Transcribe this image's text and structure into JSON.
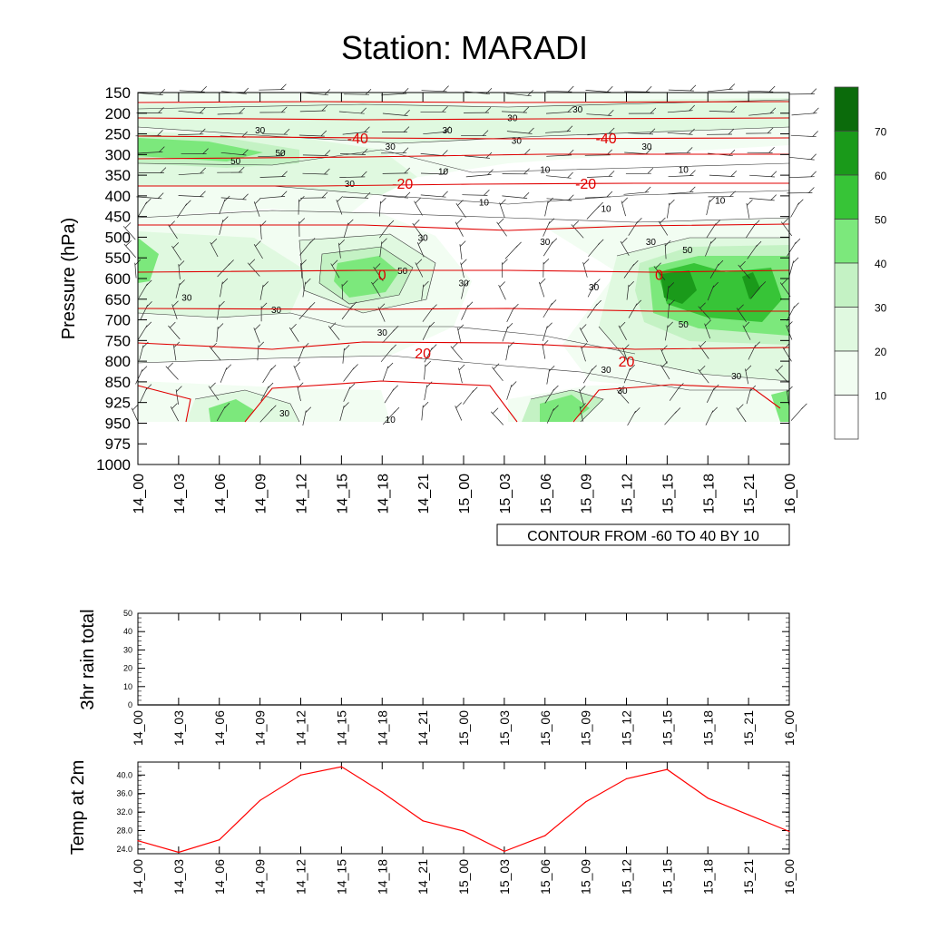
{
  "page_title": "Station: MARADI",
  "chart_data": [
    {
      "id": "upper_air",
      "type": "heatmap",
      "title": "Station: MARADI",
      "ylabel": "Pressure (hPa)",
      "xlabel": "",
      "x_ticks": [
        "14_00",
        "14_03",
        "14_06",
        "14_09",
        "14_12",
        "14_15",
        "14_18",
        "14_21",
        "15_00",
        "15_03",
        "15_06",
        "15_09",
        "15_12",
        "15_15",
        "15_18",
        "15_21",
        "16_00"
      ],
      "y_ticks": [
        "150",
        "200",
        "250",
        "300",
        "350",
        "400",
        "450",
        "500",
        "550",
        "600",
        "650",
        "700",
        "750",
        "800",
        "850",
        "925",
        "950",
        "975",
        "1000"
      ],
      "contour_label": "CONTOUR FROM -60 TO 40 BY 10",
      "colorbar": {
        "levels": [
          10,
          20,
          30,
          40,
          50,
          60,
          70
        ],
        "colors": [
          "#ffffff",
          "#f2fdf2",
          "#e0f9e0",
          "#c4f2c4",
          "#7ce87c",
          "#37c437",
          "#1a9a1a",
          "#0b6b0b"
        ]
      },
      "temperature_labels": [
        {
          "text": "-40",
          "x_index": 5.4,
          "level_index": 2.2
        },
        {
          "text": "-40",
          "x_index": 11.5,
          "level_index": 2.2
        },
        {
          "text": "-20",
          "x_index": 6.5,
          "level_index": 4.4
        },
        {
          "text": "-20",
          "x_index": 11.0,
          "level_index": 4.4
        },
        {
          "text": "0",
          "x_index": 6.0,
          "level_index": 8.8
        },
        {
          "text": "0",
          "x_index": 12.8,
          "level_index": 8.8
        },
        {
          "text": "20",
          "x_index": 7.0,
          "level_index": 12.6
        },
        {
          "text": "20",
          "x_index": 12.0,
          "level_index": 13.0
        }
      ],
      "humidity_labels": [
        {
          "text": "30",
          "x_index": 3.0,
          "level_index": 1.8
        },
        {
          "text": "30",
          "x_index": 7.6,
          "level_index": 1.8
        },
        {
          "text": "30",
          "x_index": 9.2,
          "level_index": 1.2
        },
        {
          "text": "30",
          "x_index": 10.8,
          "level_index": 0.8
        },
        {
          "text": "30",
          "x_index": 9.3,
          "level_index": 2.3
        },
        {
          "text": "30",
          "x_index": 6.2,
          "level_index": 2.6
        },
        {
          "text": "30",
          "x_index": 12.5,
          "level_index": 2.6
        },
        {
          "text": "50",
          "x_index": 3.5,
          "level_index": 2.9
        },
        {
          "text": "50",
          "x_index": 2.4,
          "level_index": 3.3
        },
        {
          "text": "10",
          "x_index": 7.5,
          "level_index": 3.8
        },
        {
          "text": "10",
          "x_index": 10.0,
          "level_index": 3.7
        },
        {
          "text": "10",
          "x_index": 13.4,
          "level_index": 3.7
        },
        {
          "text": "30",
          "x_index": 5.2,
          "level_index": 4.4
        },
        {
          "text": "10",
          "x_index": 8.5,
          "level_index": 5.3
        },
        {
          "text": "10",
          "x_index": 11.5,
          "level_index": 5.6
        },
        {
          "text": "10",
          "x_index": 14.3,
          "level_index": 5.2
        },
        {
          "text": "30",
          "x_index": 7.0,
          "level_index": 7.0
        },
        {
          "text": "30",
          "x_index": 10.0,
          "level_index": 7.2
        },
        {
          "text": "30",
          "x_index": 12.6,
          "level_index": 7.2
        },
        {
          "text": "50",
          "x_index": 13.5,
          "level_index": 7.6
        },
        {
          "text": "50",
          "x_index": 6.5,
          "level_index": 8.6
        },
        {
          "text": "30",
          "x_index": 8.0,
          "level_index": 9.2
        },
        {
          "text": "30",
          "x_index": 11.2,
          "level_index": 9.4
        },
        {
          "text": "30",
          "x_index": 1.2,
          "level_index": 9.9
        },
        {
          "text": "30",
          "x_index": 3.4,
          "level_index": 10.5
        },
        {
          "text": "50",
          "x_index": 13.4,
          "level_index": 11.2
        },
        {
          "text": "30",
          "x_index": 6.0,
          "level_index": 11.6
        },
        {
          "text": "30",
          "x_index": 11.5,
          "level_index": 13.4
        },
        {
          "text": "30",
          "x_index": 14.7,
          "level_index": 13.7
        },
        {
          "text": "30",
          "x_index": 11.9,
          "level_index": 14.4
        },
        {
          "text": "30",
          "x_index": 3.6,
          "level_index": 15.5
        },
        {
          "text": "10",
          "x_index": 6.2,
          "level_index": 15.8
        }
      ]
    },
    {
      "id": "rain",
      "type": "line",
      "ylabel": "3hr rain total",
      "x": [
        "14_00",
        "14_03",
        "14_06",
        "14_09",
        "14_12",
        "14_15",
        "14_18",
        "14_21",
        "15_00",
        "15_03",
        "15_06",
        "15_09",
        "15_12",
        "15_15",
        "15_18",
        "15_21",
        "16_00"
      ],
      "y_ticks": [
        "0",
        "10",
        "20",
        "30",
        "40",
        "50"
      ],
      "ylim": [
        0,
        50
      ],
      "series": [
        {
          "name": "3hr rain total",
          "values": [
            0,
            0,
            0,
            0,
            0,
            0,
            0,
            0,
            0,
            0,
            0,
            0,
            0,
            0,
            0,
            0,
            0
          ],
          "color": "#000000"
        }
      ]
    },
    {
      "id": "temp2m",
      "type": "line",
      "ylabel": "Temp at 2m",
      "x": [
        "14_00",
        "14_03",
        "14_06",
        "14_09",
        "14_12",
        "14_15",
        "14_18",
        "14_21",
        "15_00",
        "15_03",
        "15_06",
        "15_09",
        "15_12",
        "15_15",
        "15_18",
        "15_21",
        "16_00"
      ],
      "y_ticks": [
        "24.0",
        "28.0",
        "32.0",
        "36.0",
        "40.0"
      ],
      "ylim": [
        23.0,
        42.8
      ],
      "series": [
        {
          "name": "Temp at 2m",
          "values": [
            25.8,
            23.3,
            26.0,
            34.5,
            40.0,
            41.8,
            36.3,
            30.1,
            27.9,
            23.5,
            26.9,
            34.2,
            39.2,
            41.2,
            35.0,
            31.4,
            27.8
          ],
          "color": "#ff0000"
        }
      ]
    }
  ]
}
